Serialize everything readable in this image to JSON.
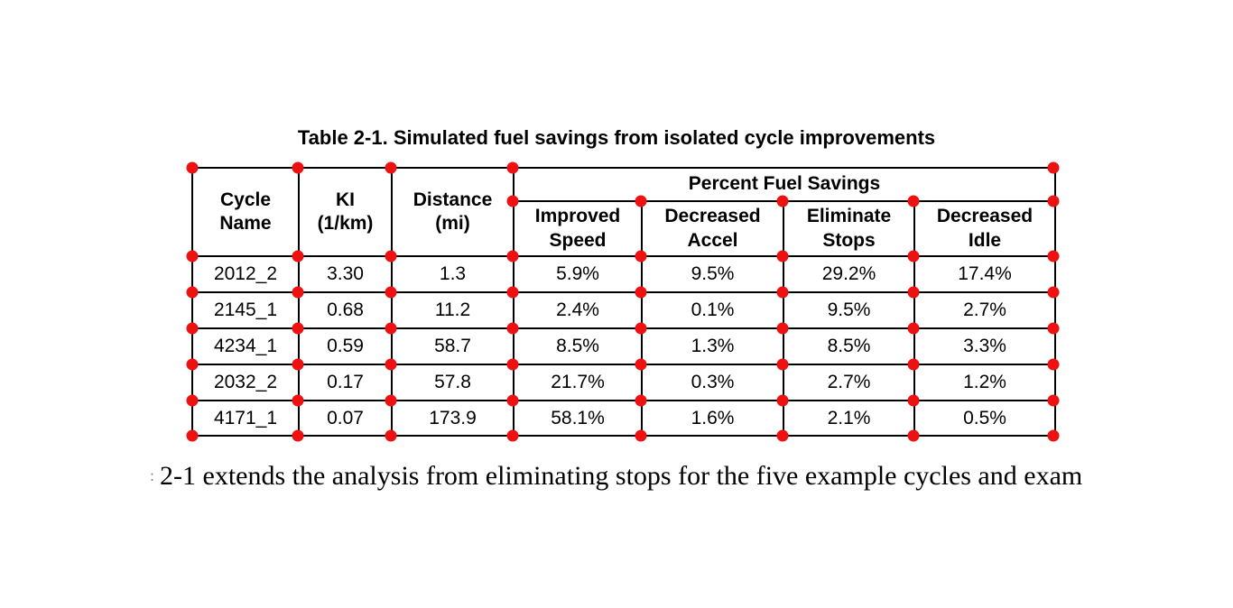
{
  "caption": "Table 2-1. Simulated fuel savings from isolated cycle improvements",
  "table": {
    "headers": {
      "cycle": "Cycle\nName",
      "ki": "KI\n(1/km)",
      "distance": "Distance\n(mi)",
      "percent_fuel_savings": "Percent Fuel Savings",
      "improved_speed": "Improved\nSpeed",
      "decreased_accel": "Decreased\nAccel",
      "eliminate_stops": "Eliminate\nStops",
      "decreased_idle": "Decreased\nIdle"
    },
    "rows": [
      {
        "cycle": "2012_2",
        "ki": "3.30",
        "distance": "1.3",
        "improved_speed": "5.9%",
        "decreased_accel": "9.5%",
        "eliminate_stops": "29.2%",
        "decreased_idle": "17.4%"
      },
      {
        "cycle": "2145_1",
        "ki": "0.68",
        "distance": "11.2",
        "improved_speed": "2.4%",
        "decreased_accel": "0.1%",
        "eliminate_stops": "9.5%",
        "decreased_idle": "2.7%"
      },
      {
        "cycle": "4234_1",
        "ki": "0.59",
        "distance": "58.7",
        "improved_speed": "8.5%",
        "decreased_accel": "1.3%",
        "eliminate_stops": "8.5%",
        "decreased_idle": "3.3%"
      },
      {
        "cycle": "2032_2",
        "ki": "0.17",
        "distance": "57.8",
        "improved_speed": "21.7%",
        "decreased_accel": "0.3%",
        "eliminate_stops": "2.7%",
        "decreased_idle": "1.2%"
      },
      {
        "cycle": "4171_1",
        "ki": "0.07",
        "distance": "173.9",
        "improved_speed": "58.1%",
        "decreased_accel": "1.6%",
        "eliminate_stops": "2.1%",
        "decreased_idle": "0.5%"
      }
    ]
  },
  "annotations": {
    "dot_color": "#ee1111"
  },
  "body": {
    "fragment": ":",
    "text": "2-1 extends the analysis from eliminating stops for the five example cycles and exam"
  }
}
